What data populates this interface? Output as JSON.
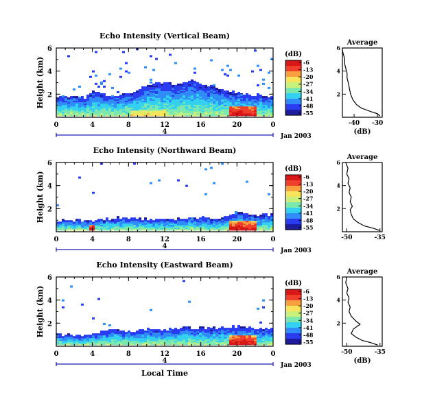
{
  "figure": {
    "xlabel": "Local Time",
    "date_label": "Jan 2003",
    "day_label": "4",
    "colorbar_unit": "(dB)",
    "colorbar_ticks": [
      "-6",
      "-13",
      "-20",
      "-27",
      "-34",
      "-41",
      "-48",
      "-55"
    ],
    "colors": {
      "scale": [
        "#1c1c9c",
        "#2a3cf0",
        "#2f8cf8",
        "#34d0f0",
        "#7be8b0",
        "#c8f07a",
        "#f8e45a",
        "#f8a040",
        "#f0402c",
        "#d81818"
      ]
    }
  },
  "chart_data": [
    {
      "type": "heatmap",
      "title": "Echo Intensity (Vertical Beam)",
      "ylabel": "Height (km)",
      "xticks": [
        "0",
        "4",
        "8",
        "12",
        "16",
        "20",
        "0"
      ],
      "yticks": [
        "2",
        "4",
        "6"
      ],
      "xlim": [
        0,
        24
      ],
      "ylim": [
        0,
        6
      ],
      "echo_top_km": [
        1.7,
        1.8,
        1.6,
        1.6,
        2.1,
        1.9,
        1.8,
        1.8,
        2.0,
        2.3,
        2.6,
        2.8,
        3.0,
        2.6,
        2.9,
        3.1,
        2.7,
        2.6,
        2.4,
        2.2,
        2.0,
        1.9,
        1.8,
        1.7,
        1.7
      ],
      "avg_panel": {
        "title": "Average",
        "xlabel": "(dB)",
        "xticks": [
          "-40",
          "-30"
        ],
        "yticks": [
          "2",
          "4",
          "6"
        ],
        "xlim": [
          -45,
          -28
        ],
        "ylim": [
          0,
          6
        ],
        "profile_db": [
          -29,
          -30,
          -33,
          -37,
          -39,
          -40.5,
          -41.5,
          -42,
          -42.5,
          -43,
          -43,
          -43.5,
          -44,
          -44,
          -44.5,
          -45,
          -45
        ],
        "profile_km": [
          0.1,
          0.3,
          0.5,
          0.8,
          1.1,
          1.5,
          2.0,
          2.5,
          3.0,
          3.4,
          3.8,
          4.2,
          4.6,
          5.0,
          5.4,
          5.8,
          6.0
        ]
      }
    },
    {
      "type": "heatmap",
      "title": "Echo Intensity (Northward Beam)",
      "ylabel": "Height (km)",
      "xticks": [
        "0",
        "4",
        "8",
        "12",
        "16",
        "20",
        "0"
      ],
      "yticks": [
        "2",
        "4",
        "6"
      ],
      "xlim": [
        0,
        24
      ],
      "ylim": [
        0,
        6
      ],
      "echo_top_km": [
        0.9,
        0.9,
        0.9,
        0.9,
        0.9,
        1.0,
        1.0,
        1.1,
        1.1,
        1.0,
        1.0,
        1.0,
        1.0,
        1.0,
        1.1,
        1.1,
        1.1,
        1.0,
        1.0,
        1.3,
        1.5,
        1.5,
        1.4,
        1.4,
        1.4
      ],
      "avg_panel": {
        "title": "Average",
        "xlabel": "",
        "xticks": [
          "-50",
          "-35"
        ],
        "yticks": [
          "2",
          "4",
          "6"
        ],
        "xlim": [
          -52,
          -34
        ],
        "ylim": [
          0,
          6
        ],
        "profile_db": [
          -35,
          -38,
          -42,
          -45,
          -47,
          -48,
          -48.5,
          -47.5,
          -48.5,
          -48,
          -49,
          -48.5,
          -49.5,
          -49,
          -50,
          -49.5,
          -50.5
        ],
        "profile_km": [
          0.1,
          0.3,
          0.5,
          0.8,
          1.1,
          1.5,
          1.9,
          2.2,
          2.6,
          3.0,
          3.4,
          3.8,
          4.2,
          4.6,
          5.0,
          5.5,
          6.0
        ]
      }
    },
    {
      "type": "heatmap",
      "title": "Echo Intensity (Eastward Beam)",
      "ylabel": "Height (km)",
      "xticks": [
        "0",
        "4",
        "8",
        "12",
        "16",
        "20",
        "0"
      ],
      "yticks": [
        "2",
        "4",
        "6"
      ],
      "xlim": [
        0,
        24
      ],
      "ylim": [
        0,
        6
      ],
      "echo_top_km": [
        0.9,
        0.9,
        0.8,
        0.9,
        1.0,
        1.2,
        1.3,
        1.3,
        1.2,
        1.3,
        1.4,
        1.3,
        1.4,
        1.4,
        1.5,
        1.4,
        1.5,
        1.4,
        1.5,
        1.6,
        1.6,
        1.5,
        1.4,
        1.4,
        1.4
      ],
      "avg_panel": {
        "title": "Average",
        "xlabel": "(dB)",
        "xticks": [
          "-50",
          "-35"
        ],
        "yticks": [
          "2",
          "4",
          "6"
        ],
        "xlim": [
          -52,
          -34
        ],
        "ylim": [
          0,
          6
        ],
        "profile_db": [
          -36,
          -39,
          -43,
          -46,
          -48,
          -47,
          -44,
          -46,
          -48,
          -49,
          -48.5,
          -49.5,
          -49,
          -50,
          -49.5,
          -50.5,
          -50
        ],
        "profile_km": [
          0.1,
          0.3,
          0.5,
          0.8,
          1.1,
          1.5,
          1.9,
          2.2,
          2.6,
          3.0,
          3.4,
          3.8,
          4.2,
          4.6,
          5.0,
          5.5,
          6.0
        ]
      }
    }
  ]
}
